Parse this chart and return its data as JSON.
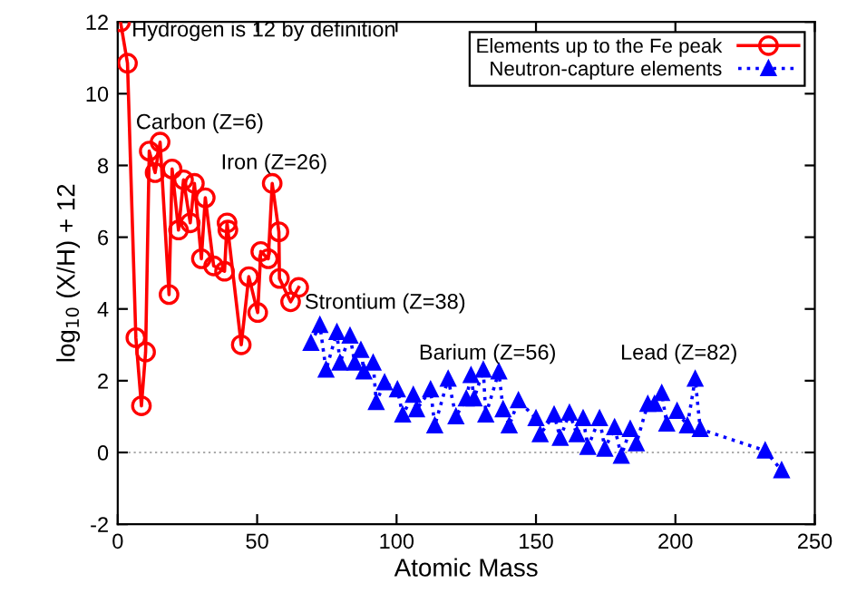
{
  "chart_data": {
    "type": "line",
    "xlabel": "Atomic Mass",
    "ylabel": "log$_{10}$ (X/H) + 12",
    "xlim": [
      0,
      250
    ],
    "xticks": [
      0,
      50,
      100,
      150,
      200,
      250
    ],
    "ylim": [
      -2,
      12
    ],
    "yticks": [
      -2,
      0,
      2,
      4,
      6,
      8,
      10,
      12
    ],
    "grid": false,
    "legend": "top right",
    "series": [
      {
        "name": "Elements up to the Fe peak",
        "color": "#ff0000",
        "marker": "circle",
        "line_style": "solid",
        "x": [
          1,
          3.5,
          6.5,
          8.5,
          10,
          11.3,
          13.4,
          15.2,
          18.4,
          19.5,
          21.8,
          23.6,
          26,
          27.5,
          30,
          31.4,
          34.4,
          38.3,
          39.2,
          39.5,
          44.3,
          47,
          50.2,
          51.3,
          54,
          55.4,
          57.8,
          58,
          62,
          64.9
        ],
        "values": [
          12,
          10.85,
          3.2,
          1.3,
          2.8,
          8.4,
          7.8,
          8.65,
          4.4,
          7.9,
          6.2,
          7.6,
          6.4,
          7.5,
          5.4,
          7.1,
          5.2,
          5.05,
          6.4,
          6.2,
          3.0,
          4.9,
          3.9,
          5.6,
          5.4,
          7.5,
          6.15,
          4.85,
          4.2,
          4.6
        ]
      },
      {
        "name": "Neutron-capture elements",
        "color": "#0000ff",
        "marker": "triangle",
        "line_style": "dotted",
        "x": [
          69.3,
          72.5,
          74.7,
          78.6,
          79.7,
          83.3,
          85,
          87.2,
          88.3,
          91.6,
          92.7,
          95.7,
          100.3,
          102.2,
          106,
          107.2,
          112.2,
          113.7,
          118.5,
          121.3,
          125,
          126.7,
          127.8,
          131.1,
          132,
          136.7,
          138.2,
          140.4,
          143.7,
          150,
          151.5,
          156.5,
          158.7,
          162,
          164.7,
          166.9,
          168.6,
          172.8,
          174.7,
          178.2,
          180.6,
          183.8,
          186,
          190.1,
          192.5,
          195.1,
          196.9,
          200.6,
          204.3,
          207.1,
          208.9,
          232.2,
          238.1
        ],
        "values": [
          3.05,
          3.55,
          2.3,
          3.35,
          2.5,
          3.25,
          2.5,
          2.85,
          2.25,
          2.5,
          1.4,
          1.95,
          1.75,
          1.05,
          1.6,
          1.2,
          1.75,
          0.75,
          2.05,
          1.0,
          1.5,
          2.15,
          1.5,
          2.3,
          1.05,
          2.25,
          1.2,
          0.75,
          1.45,
          0.95,
          0.5,
          1.05,
          0.4,
          1.1,
          0.5,
          0.95,
          0.15,
          0.95,
          0.1,
          0.7,
          -0.1,
          0.65,
          0.25,
          1.35,
          1.35,
          1.65,
          0.8,
          1.15,
          0.75,
          2.05,
          0.65,
          0.05,
          -0.5
        ]
      }
    ],
    "ref_lines": [
      {
        "axis": "y",
        "value": 0,
        "color": "#aaaaaa",
        "line_style": "dotted"
      }
    ],
    "annotations": [
      "Hydrogen is 12 by definition",
      "Carbon (Z=6)",
      "Iron (Z=26)",
      "Strontium (Z=38)",
      "Barium (Z=56)",
      "Lead (Z=82)"
    ]
  }
}
